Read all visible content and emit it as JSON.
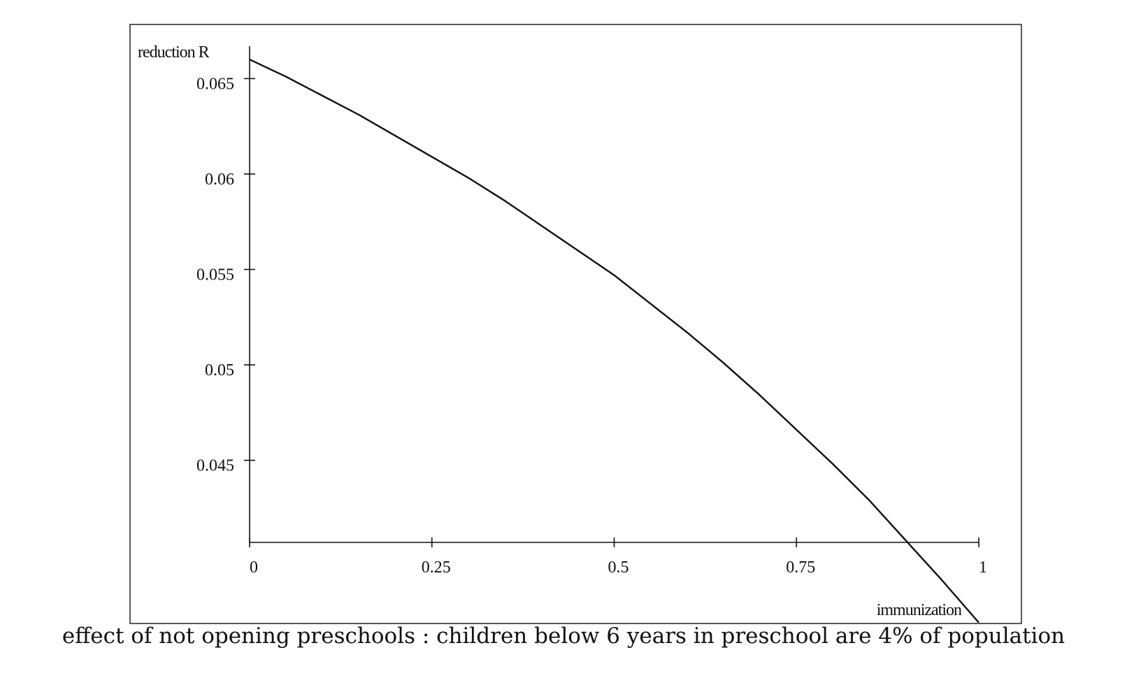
{
  "chart_data": {
    "type": "line",
    "title": "",
    "xlabel": "immunization",
    "ylabel": "reduction R",
    "caption": "effect of not opening preschools : children below 6 years in preschool are 4% of population",
    "xlim": [
      0,
      1
    ],
    "ylim": [
      0.0407,
      0.0667
    ],
    "x_ticks": [
      0,
      0.25,
      0.5,
      0.75,
      1
    ],
    "x_tick_labels": [
      "0",
      "0.25",
      "0.5",
      "0.75",
      "1"
    ],
    "y_ticks": [
      0.045,
      0.05,
      0.055,
      0.06,
      0.065
    ],
    "y_tick_labels": [
      "0.045",
      "0.05",
      "0.055",
      "0.06",
      "0.065"
    ],
    "grid": false,
    "series": [
      {
        "color": "#111111",
        "x": [
          0,
          0.05,
          0.1,
          0.15,
          0.2,
          0.25,
          0.3,
          0.35,
          0.4,
          0.45,
          0.5,
          0.55,
          0.6,
          0.65,
          0.7,
          0.75,
          0.8,
          0.85,
          0.9,
          0.95,
          1
        ],
        "y": [
          0.066,
          0.0651,
          0.0641,
          0.0631,
          0.062,
          0.0609,
          0.0598,
          0.0586,
          0.0573,
          0.056,
          0.0547,
          0.0532,
          0.0517,
          0.0501,
          0.0484,
          0.0466,
          0.0448,
          0.0429,
          0.0408,
          0.0387,
          0.0365
        ]
      }
    ]
  }
}
